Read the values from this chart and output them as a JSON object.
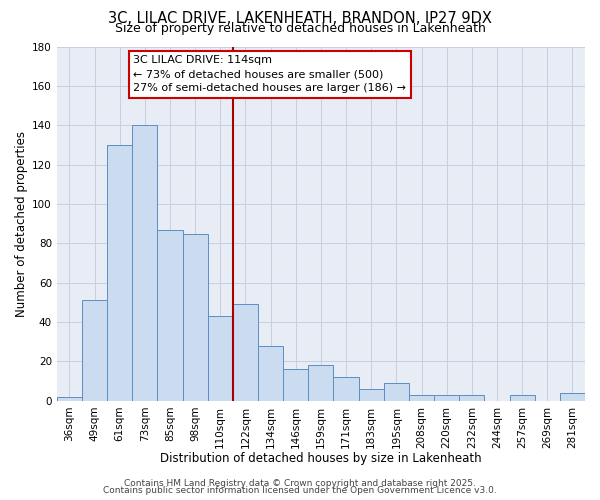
{
  "title": "3C, LILAC DRIVE, LAKENHEATH, BRANDON, IP27 9DX",
  "subtitle": "Size of property relative to detached houses in Lakenheath",
  "xlabel": "Distribution of detached houses by size in Lakenheath",
  "ylabel": "Number of detached properties",
  "categories": [
    "36sqm",
    "49sqm",
    "61sqm",
    "73sqm",
    "85sqm",
    "98sqm",
    "110sqm",
    "122sqm",
    "134sqm",
    "146sqm",
    "159sqm",
    "171sqm",
    "183sqm",
    "195sqm",
    "208sqm",
    "220sqm",
    "232sqm",
    "244sqm",
    "257sqm",
    "269sqm",
    "281sqm"
  ],
  "values": [
    2,
    51,
    130,
    140,
    87,
    85,
    43,
    49,
    28,
    16,
    18,
    12,
    6,
    9,
    3,
    3,
    3,
    0,
    3,
    0,
    4
  ],
  "bar_color": "#ccdcf0",
  "bar_edge_color": "#5b8ec4",
  "vline_x": 6.5,
  "vline_color": "#aa0000",
  "ylim": [
    0,
    180
  ],
  "yticks": [
    0,
    20,
    40,
    60,
    80,
    100,
    120,
    140,
    160,
    180
  ],
  "annotation_title": "3C LILAC DRIVE: 114sqm",
  "annotation_line1": "← 73% of detached houses are smaller (500)",
  "annotation_line2": "27% of semi-detached houses are larger (186) →",
  "annotation_box_color": "#ffffff",
  "annotation_box_edge": "#cc0000",
  "footer1": "Contains HM Land Registry data © Crown copyright and database right 2025.",
  "footer2": "Contains public sector information licensed under the Open Government Licence v3.0.",
  "background_color": "#ffffff",
  "plot_bg_color": "#e8edf5",
  "grid_color": "#c8d0e0",
  "title_fontsize": 10.5,
  "subtitle_fontsize": 9,
  "xlabel_fontsize": 8.5,
  "ylabel_fontsize": 8.5,
  "tick_fontsize": 7.5,
  "annot_fontsize": 8,
  "footer_fontsize": 6.5
}
